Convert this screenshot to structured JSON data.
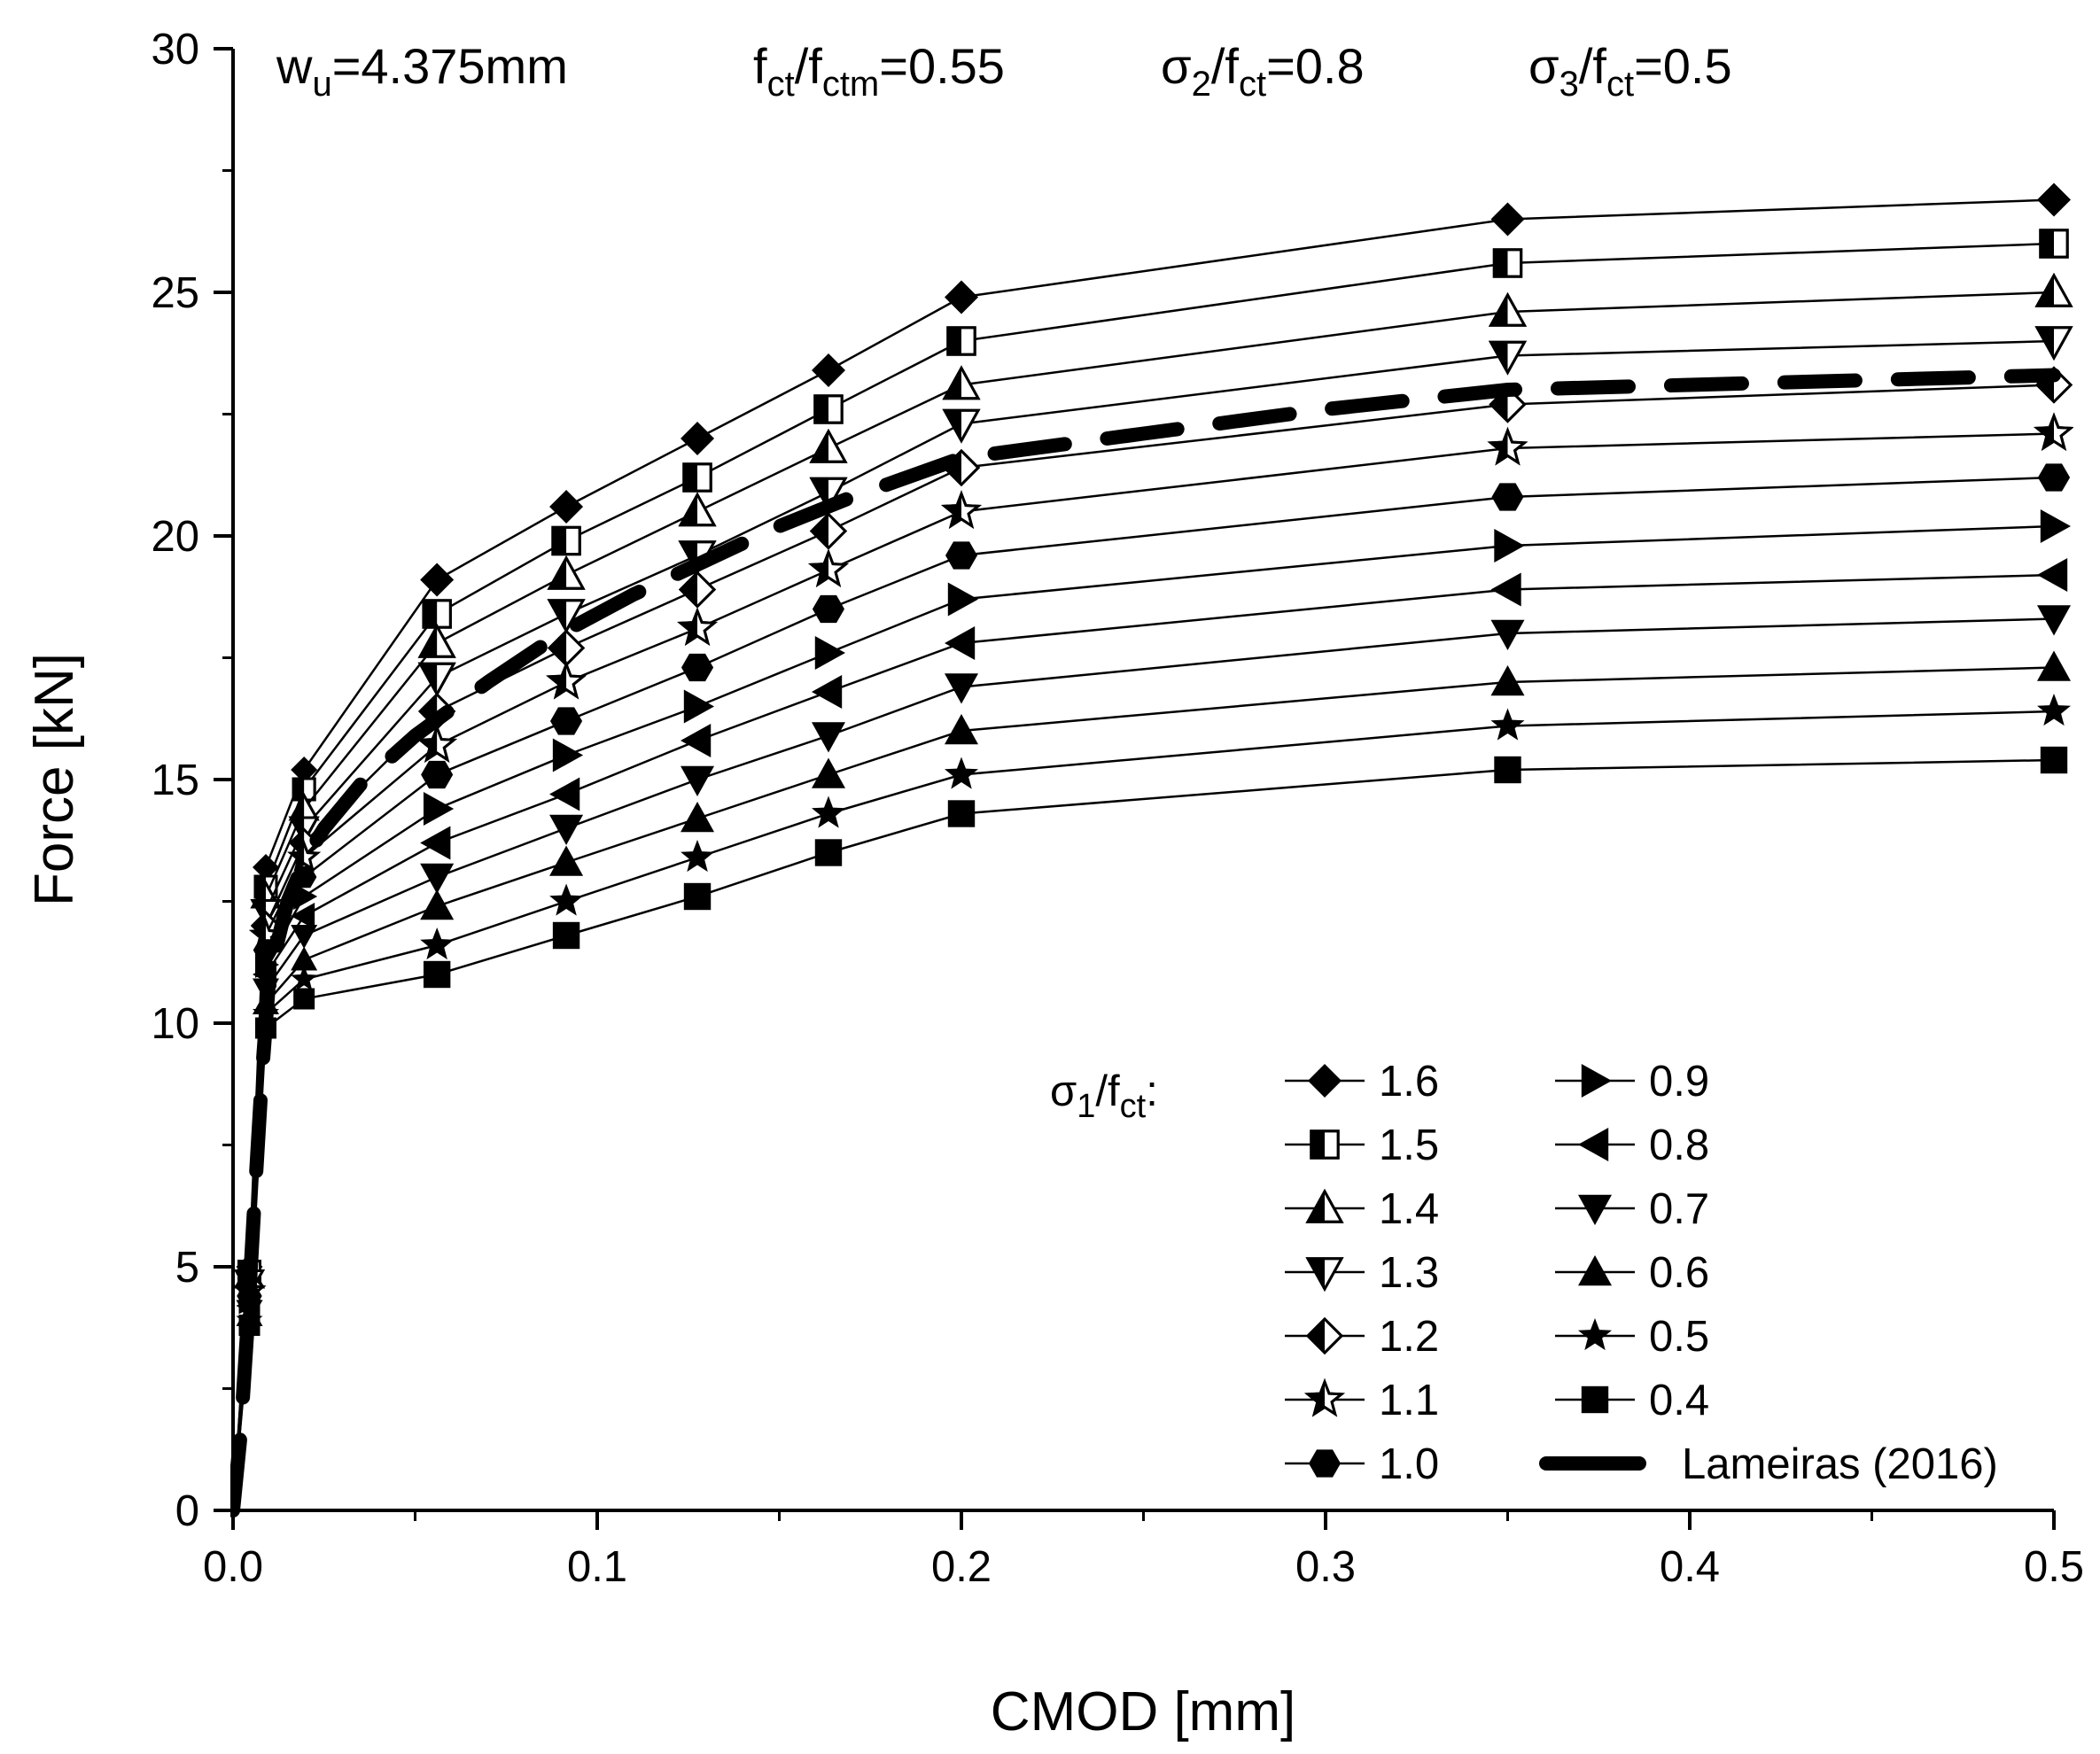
{
  "chart_data": {
    "type": "line",
    "xlabel": "CMOD [mm]",
    "ylabel": "Force [kN]",
    "xlim": [
      0,
      0.5
    ],
    "ylim": [
      0,
      30
    ],
    "xticks": [
      "0.0",
      "0.1",
      "0.2",
      "0.3",
      "0.4",
      "0.5"
    ],
    "yticks": [
      "0",
      "5",
      "10",
      "15",
      "20",
      "25",
      "30"
    ],
    "annotations": {
      "wu": {
        "base": "w",
        "sub": "u",
        "tail": "=4.375mm"
      },
      "fct_ratio": {
        "base": "f",
        "sub": "ct",
        "mid": "/f",
        "sub2": "ctm",
        "tail": "=0.55"
      },
      "sigma2": {
        "base": "σ",
        "sub": "2",
        "mid": "/f",
        "sub2": "ct",
        "tail": "=0.8"
      },
      "sigma3": {
        "base": "σ",
        "sub": "3",
        "mid": "/f",
        "sub2": "ct",
        "tail": "=0.5"
      }
    },
    "legend_title": {
      "base": "σ",
      "sub": "1",
      "mid": "/f",
      "sub2": "ct",
      "tail": ":"
    },
    "legend_position": "bottom-right",
    "x": [
      0,
      0.0045,
      0.009,
      0.0195,
      0.056,
      0.0915,
      0.1275,
      0.1635,
      0.2,
      0.35,
      0.5
    ],
    "series": [
      {
        "name": "1.6",
        "marker": "diamond-filled",
        "values": [
          0,
          5.0,
          13.2,
          15.2,
          19.1,
          20.6,
          22.0,
          23.4,
          24.9,
          26.5,
          26.9
        ]
      },
      {
        "name": "1.5",
        "marker": "square-half",
        "values": [
          0,
          4.9,
          12.8,
          14.8,
          18.4,
          19.9,
          21.2,
          22.6,
          24.0,
          25.6,
          26.0
        ]
      },
      {
        "name": "1.4",
        "marker": "triangle-up-half",
        "values": [
          0,
          4.8,
          12.6,
          14.4,
          17.8,
          19.2,
          20.5,
          21.8,
          23.1,
          24.6,
          25.0
        ]
      },
      {
        "name": "1.3",
        "marker": "triangle-down-half",
        "values": [
          0,
          4.7,
          12.3,
          14.0,
          17.1,
          18.4,
          19.6,
          20.9,
          22.3,
          23.7,
          24.0
        ]
      },
      {
        "name": "1.2",
        "marker": "diamond-half",
        "values": [
          0,
          4.6,
          12.0,
          13.7,
          16.4,
          17.7,
          18.9,
          20.1,
          21.4,
          22.7,
          23.1
        ]
      },
      {
        "name": "1.1",
        "marker": "star-half",
        "values": [
          0,
          4.5,
          11.8,
          13.4,
          15.7,
          17.0,
          18.1,
          19.3,
          20.5,
          21.8,
          22.1
        ]
      },
      {
        "name": "1.0",
        "marker": "hexagon-filled",
        "values": [
          0,
          4.4,
          11.5,
          13.0,
          15.1,
          16.2,
          17.3,
          18.5,
          19.6,
          20.8,
          21.2
        ]
      },
      {
        "name": "0.9",
        "marker": "triangle-right-filled",
        "values": [
          0,
          4.3,
          11.2,
          12.6,
          14.4,
          15.5,
          16.5,
          17.6,
          18.7,
          19.8,
          20.2
        ]
      },
      {
        "name": "0.8",
        "marker": "triangle-left-filled",
        "values": [
          0,
          4.2,
          11.0,
          12.2,
          13.7,
          14.7,
          15.8,
          16.8,
          17.8,
          18.9,
          19.2
        ]
      },
      {
        "name": "0.7",
        "marker": "triangle-down-filled",
        "values": [
          0,
          4.1,
          10.7,
          11.8,
          13.0,
          14.0,
          15.0,
          15.9,
          16.9,
          18.0,
          18.3
        ]
      },
      {
        "name": "0.6",
        "marker": "triangle-up-filled",
        "values": [
          0,
          4.0,
          10.4,
          11.3,
          12.4,
          13.3,
          14.2,
          15.1,
          16.0,
          17.0,
          17.3
        ]
      },
      {
        "name": "0.5",
        "marker": "star-filled",
        "values": [
          0,
          3.9,
          10.2,
          10.9,
          11.6,
          12.5,
          13.4,
          14.3,
          15.1,
          16.1,
          16.4
        ]
      },
      {
        "name": "0.4",
        "marker": "square-filled",
        "values": [
          0,
          3.8,
          9.9,
          10.5,
          11.0,
          11.8,
          12.6,
          13.5,
          14.3,
          15.2,
          15.4
        ]
      }
    ],
    "reference": {
      "name": "Lameiras (2016)",
      "style": "thick-dashed",
      "x": [
        0,
        0.002,
        0.004,
        0.006,
        0.008,
        0.01,
        0.015,
        0.02,
        0.025,
        0.035,
        0.05,
        0.07,
        0.09,
        0.11,
        0.13,
        0.15,
        0.17,
        0.2,
        0.25,
        0.3,
        0.35,
        0.4,
        0.45,
        0.5
      ],
      "y": [
        0,
        1.5,
        3.8,
        6.5,
        9.0,
        11.0,
        12.5,
        13.4,
        14.0,
        14.9,
        15.9,
        17.0,
        18.0,
        18.8,
        19.5,
        20.2,
        20.8,
        21.6,
        22.1,
        22.6,
        23.0,
        23.1,
        23.2,
        23.3
      ]
    }
  }
}
